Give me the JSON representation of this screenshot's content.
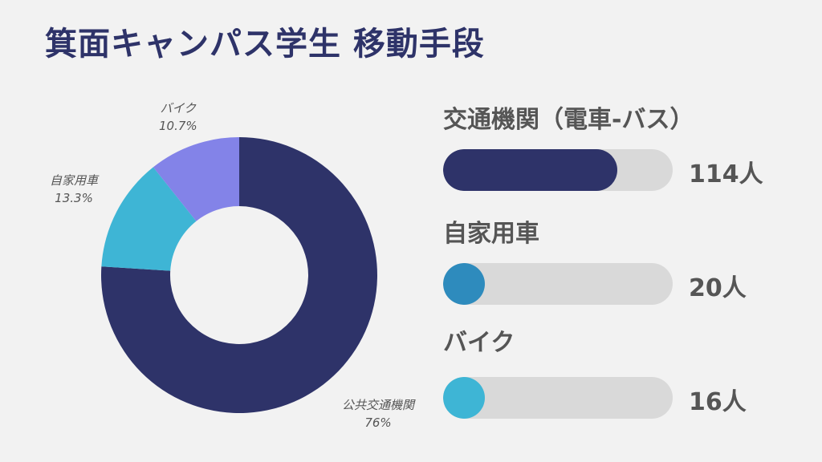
{
  "title": "箕面キャンパス学生 移動手段",
  "chart_data": [
    {
      "type": "pie",
      "style": "donut",
      "slices": [
        {
          "label": "公共交通機関",
          "percent": "76%",
          "value": 76,
          "color": "#2e3369"
        },
        {
          "label": "自家用車",
          "percent": "13.3%",
          "value": 13.3,
          "color": "#3eb5d5"
        },
        {
          "label": "バイク",
          "percent": "10.7%",
          "value": 10.7,
          "color": "#8383e8"
        }
      ]
    },
    {
      "type": "bar",
      "orientation": "horizontal",
      "max": 150,
      "rows": [
        {
          "title": "交通機関（電車-バス）",
          "value": 114,
          "count_label": "114人",
          "color": "#2e3369"
        },
        {
          "title": "自家用車",
          "value": 20,
          "count_label": "20人",
          "color": "#2e8bbd"
        },
        {
          "title": "バイク",
          "value": 16,
          "count_label": "16人",
          "color": "#3eb5d5"
        }
      ]
    }
  ]
}
